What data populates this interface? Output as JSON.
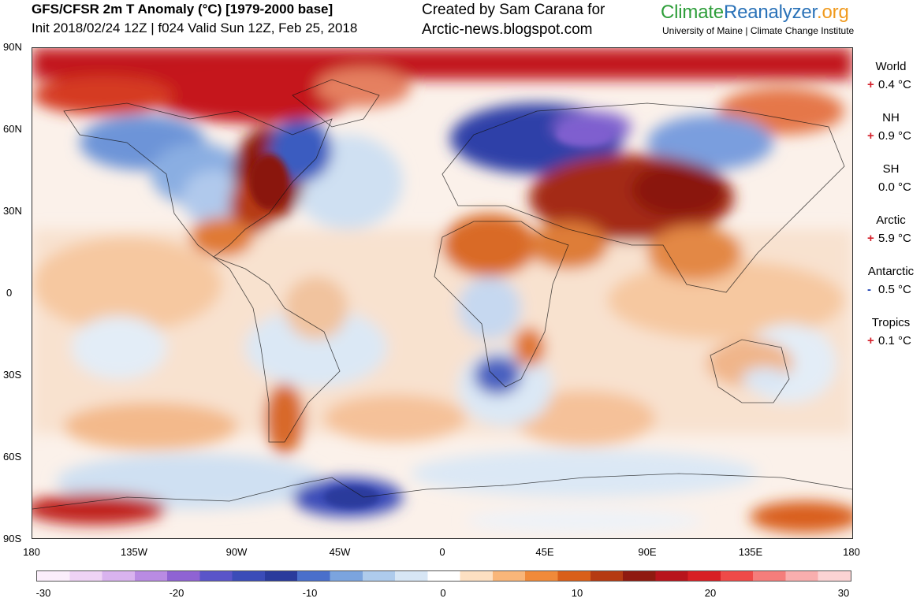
{
  "header": {
    "title": "GFS/CFSR 2m T Anomaly (°C) [1979-2000 base]",
    "subtitle": "Init 2018/02/24 12Z | f024 Valid Sun 12Z, Feb 25, 2018",
    "credit_line1": "Created by Sam Carana for",
    "credit_line2": "Arctic-news.blogspot.com",
    "brand_part1": "Climate",
    "brand_part2": "Reanalyzer",
    "brand_part3": ".org",
    "institution": "University of Maine | Climate Change Institute"
  },
  "map": {
    "y_ticks": [
      "90N",
      "60N",
      "30N",
      "0",
      "30S",
      "60S",
      "90S"
    ],
    "x_ticks": [
      "180",
      "135W",
      "90W",
      "45W",
      "0",
      "45E",
      "90E",
      "135E",
      "180"
    ]
  },
  "stats": [
    {
      "name": "World",
      "sign": "+",
      "value": "0.4 °C",
      "color": "#d4202a"
    },
    {
      "name": "NH",
      "sign": "+",
      "value": "0.9 °C",
      "color": "#d4202a"
    },
    {
      "name": "SH",
      "sign": "",
      "value": "0.0 °C",
      "color": "#000000"
    },
    {
      "name": "Arctic",
      "sign": "+",
      "value": "5.9 °C",
      "color": "#d4202a"
    },
    {
      "name": "Antarctic",
      "sign": "-",
      "value": "0.5 °C",
      "color": "#1a3fb0"
    },
    {
      "name": "Tropics",
      "sign": "+",
      "value": "0.1 °C",
      "color": "#d4202a"
    }
  ],
  "colorbar": {
    "ticks": [
      "-30",
      "-20",
      "-10",
      "0",
      "10",
      "20",
      "30"
    ],
    "min": -30,
    "max": 30,
    "colors": [
      "#fbeefb",
      "#efd3f5",
      "#d9b3ef",
      "#b98be3",
      "#8f63d3",
      "#5a55c9",
      "#3b4cb8",
      "#2a3b9c",
      "#4a6fcb",
      "#7ba4de",
      "#aecbec",
      "#d7e6f5",
      "#ffffff",
      "#fde0c2",
      "#f9b679",
      "#f08a3a",
      "#d95f1a",
      "#b53a12",
      "#8f1a10",
      "#b8141c",
      "#d81f24",
      "#ef4a48",
      "#f57d7b",
      "#f9aeae",
      "#fbd3d4"
    ]
  },
  "colors": {
    "warm": "#d4202a",
    "cold": "#1a3fb0"
  }
}
